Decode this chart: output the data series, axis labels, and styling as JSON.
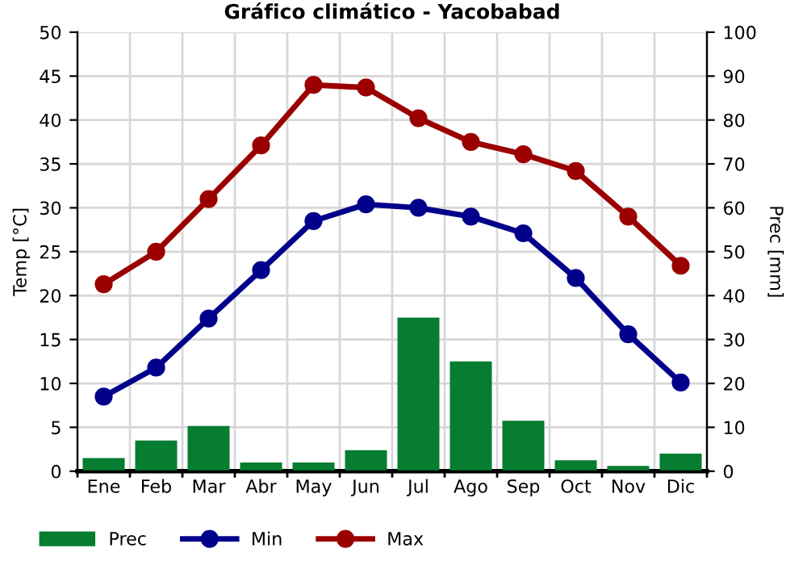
{
  "chart_data": {
    "type": "line",
    "title": "Gráfico climático - Yacobabad",
    "categories": [
      "Ene",
      "Feb",
      "Mar",
      "Abr",
      "May",
      "Jun",
      "Jul",
      "Ago",
      "Sep",
      "Oct",
      "Nov",
      "Dic"
    ],
    "ylabel": "Temp [°C]",
    "y2label": "Prec [mm]",
    "ylim": [
      0,
      50
    ],
    "yticks": [
      0,
      5,
      10,
      15,
      20,
      25,
      30,
      35,
      40,
      45,
      50
    ],
    "y2lim": [
      0,
      100
    ],
    "y2ticks": [
      0,
      10,
      20,
      30,
      40,
      50,
      60,
      70,
      80,
      90,
      100
    ],
    "grid": true,
    "legend": "bottom left",
    "marker": "circle",
    "line_style": "solid",
    "series": [
      {
        "name": "Prec",
        "type": "bar",
        "axis": "y2",
        "color": "#067d30",
        "values": [
          3,
          7,
          10.3,
          2,
          2,
          4.8,
          35,
          25,
          11.5,
          2.5,
          1.2,
          4
        ]
      },
      {
        "name": "Min",
        "color": "#00008b",
        "values": [
          8.5,
          11.8,
          17.4,
          22.9,
          28.5,
          30.4,
          30.0,
          29.0,
          27.1,
          22.0,
          15.6,
          10.1
        ]
      },
      {
        "name": "Max",
        "color": "#9b0000",
        "values": [
          21.3,
          25.0,
          31.0,
          37.1,
          44.0,
          43.7,
          40.2,
          37.5,
          36.1,
          34.2,
          29.0,
          23.4
        ]
      }
    ]
  }
}
